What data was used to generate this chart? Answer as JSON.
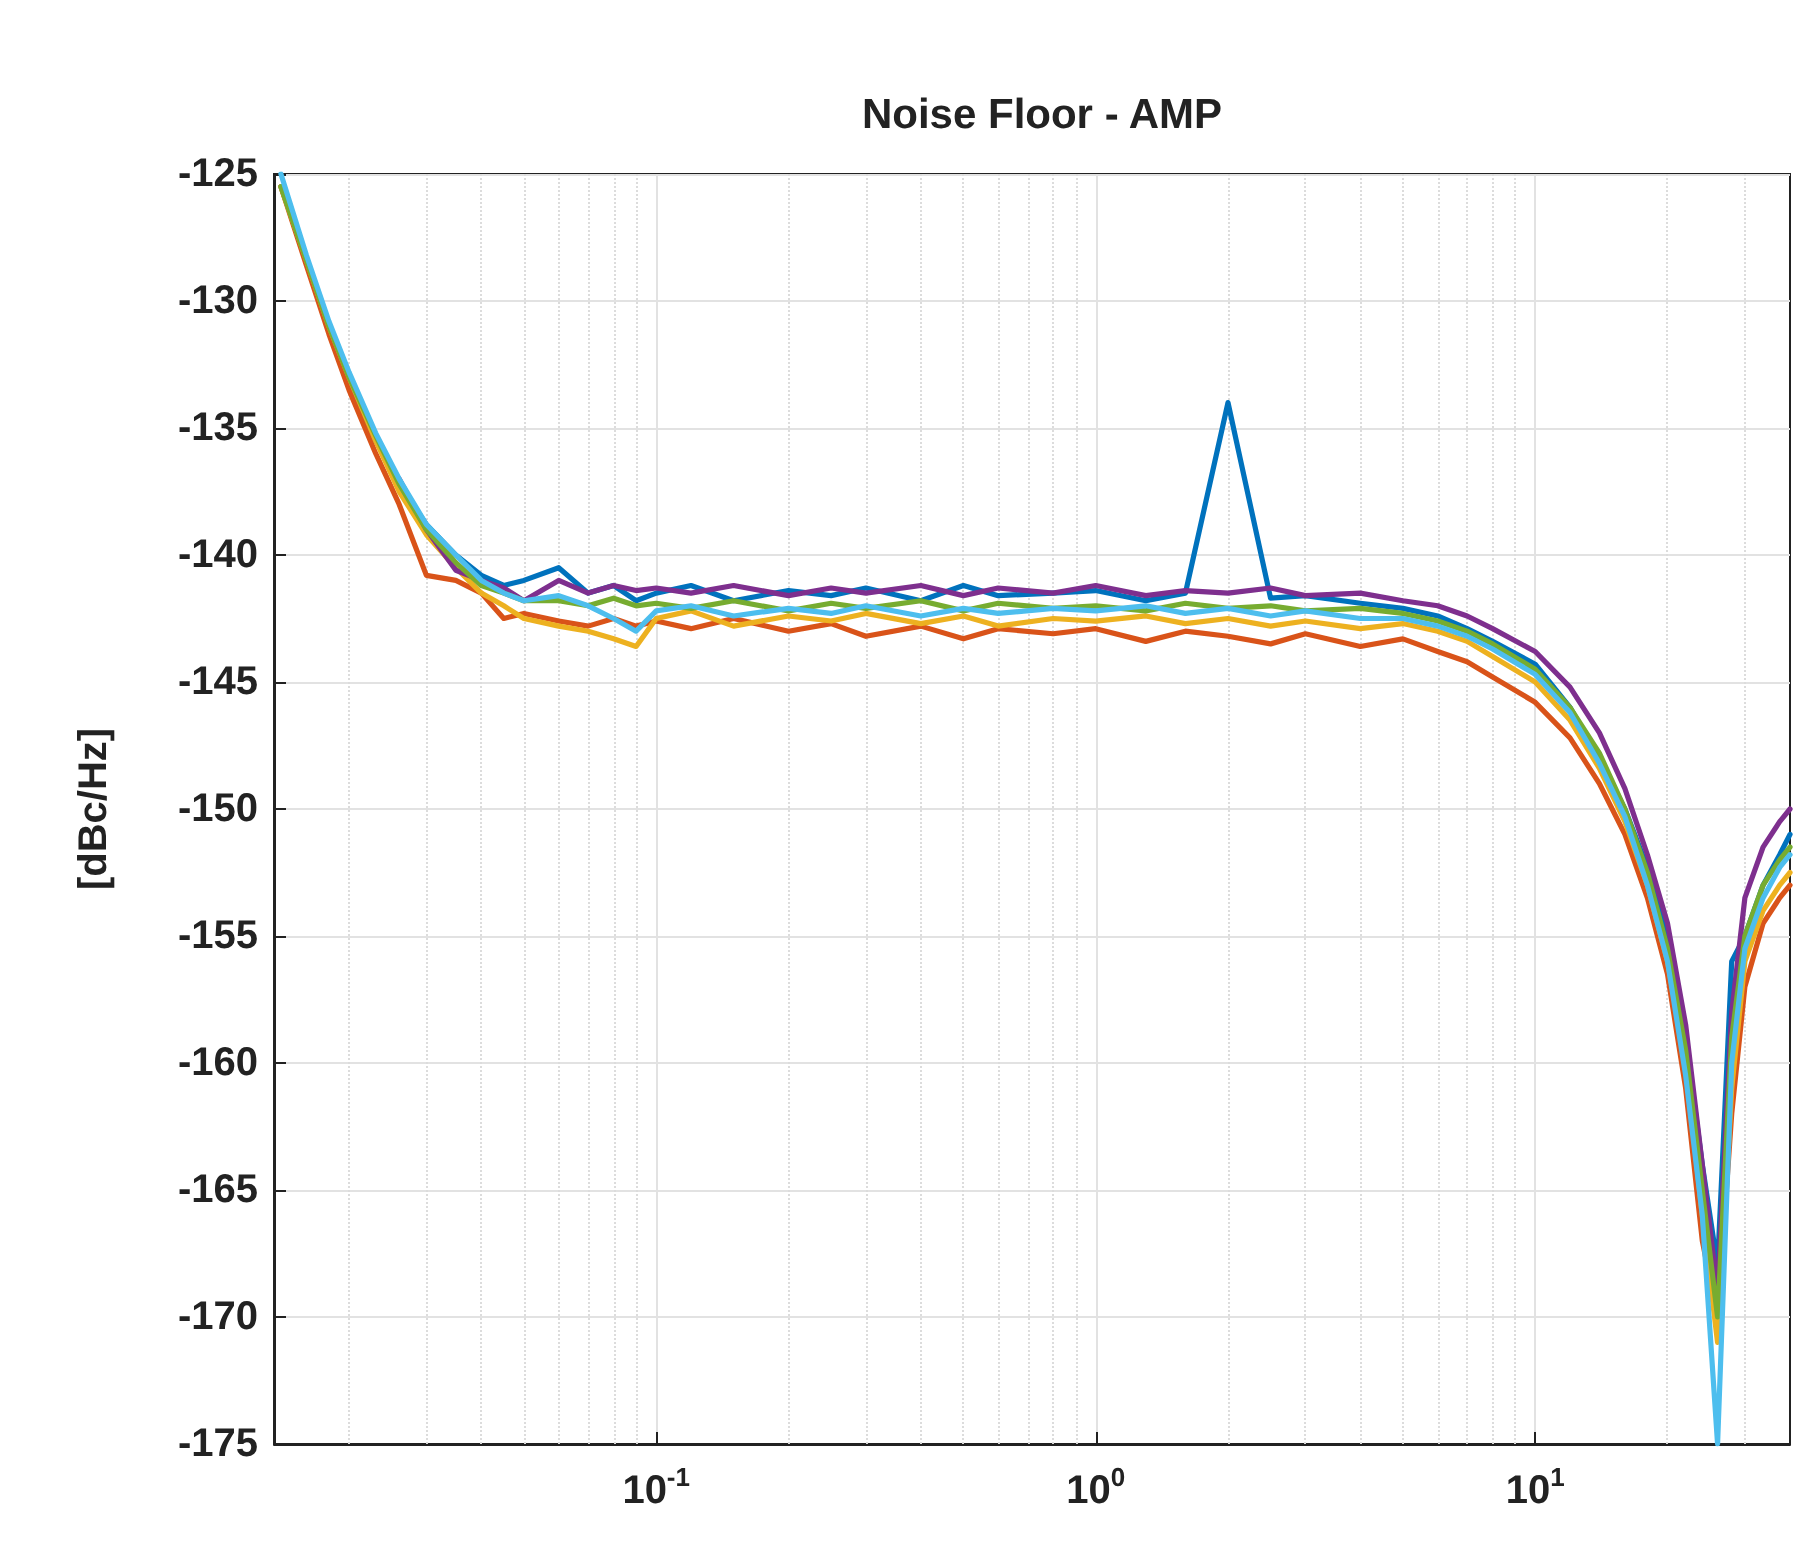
{
  "chart_data": {
    "type": "line",
    "title": "Noise Floor - AMP",
    "ylabel": "[dBc/Hz]",
    "log": "x",
    "grid": true,
    "xlim": [
      0.0135,
      38
    ],
    "xticks": [
      {
        "value": 0.1,
        "label": "10$^{-1}$"
      },
      {
        "value": 1,
        "label": "10$^{0}$"
      },
      {
        "value": 10,
        "label": "10$^{1}$"
      }
    ],
    "ylim": [
      -175,
      -125
    ],
    "yticks": [
      -175,
      -170,
      -165,
      -160,
      -155,
      -150,
      -145,
      -140,
      -135,
      -130,
      -125
    ],
    "x": [
      0.014,
      0.016,
      0.018,
      0.02,
      0.023,
      0.026,
      0.03,
      0.035,
      0.04,
      0.045,
      0.05,
      0.06,
      0.07,
      0.08,
      0.09,
      0.1,
      0.12,
      0.15,
      0.2,
      0.25,
      0.3,
      0.4,
      0.5,
      0.6,
      0.8,
      1,
      1.3,
      1.6,
      2,
      2.5,
      3,
      4,
      5,
      6,
      7,
      8,
      10,
      12,
      14,
      16,
      18,
      20,
      22,
      24,
      26,
      28,
      30,
      33,
      36,
      38
    ],
    "series": [
      {
        "color": "#0072bd",
        "values": [
          -125.5,
          -128.3,
          -131,
          -133.2,
          -135.5,
          -137.2,
          -138.8,
          -140,
          -140.8,
          -141.2,
          -141,
          -140.5,
          -141.5,
          -141.2,
          -141.8,
          -141.5,
          -141.2,
          -141.8,
          -141.4,
          -141.6,
          -141.3,
          -141.8,
          -141.2,
          -141.6,
          -141.5,
          -141.4,
          -141.8,
          -141.5,
          -134,
          -141.7,
          -141.6,
          -141.9,
          -142.1,
          -142.4,
          -142.9,
          -143.4,
          -144.3,
          -146,
          -148,
          -150,
          -152.3,
          -155,
          -159,
          -164,
          -168,
          -156,
          -155,
          -153,
          -151.8,
          -151
        ]
      },
      {
        "color": "#d95319",
        "values": [
          -125.5,
          -128.6,
          -131.3,
          -133.5,
          -136,
          -138,
          -140.8,
          -141,
          -141.5,
          -142.5,
          -142.3,
          -142.6,
          -142.8,
          -142.5,
          -142.8,
          -142.6,
          -142.9,
          -142.5,
          -143,
          -142.7,
          -143.2,
          -142.8,
          -143.3,
          -142.9,
          -143.1,
          -142.9,
          -143.4,
          -143,
          -143.2,
          -143.5,
          -143.1,
          -143.6,
          -143.3,
          -143.8,
          -144.2,
          -144.8,
          -145.8,
          -147.2,
          -149,
          -151,
          -153.5,
          -156.5,
          -161,
          -167,
          -170,
          -162,
          -157,
          -154.5,
          -153.5,
          -153
        ]
      },
      {
        "color": "#edb120",
        "values": [
          -125.5,
          -128.4,
          -131,
          -133,
          -135.5,
          -137.5,
          -139.2,
          -140.5,
          -141.5,
          -142,
          -142.5,
          -142.8,
          -143,
          -143.3,
          -143.6,
          -142.5,
          -142.2,
          -142.8,
          -142.4,
          -142.6,
          -142.3,
          -142.7,
          -142.4,
          -142.8,
          -142.5,
          -142.6,
          -142.4,
          -142.7,
          -142.5,
          -142.8,
          -142.6,
          -142.9,
          -142.7,
          -143,
          -143.4,
          -144,
          -145,
          -146.5,
          -148.4,
          -150.5,
          -153,
          -156,
          -160,
          -166,
          -171,
          -161,
          -156,
          -154,
          -153,
          -152.5
        ]
      },
      {
        "color": "#7e2f8e",
        "values": [
          null,
          null,
          null,
          null,
          null,
          -137,
          -139,
          -140.6,
          -141,
          -141.3,
          -141.8,
          -141,
          -141.5,
          -141.2,
          -141.4,
          -141.3,
          -141.5,
          -141.2,
          -141.6,
          -141.3,
          -141.5,
          -141.2,
          -141.6,
          -141.3,
          -141.5,
          -141.2,
          -141.6,
          -141.4,
          -141.5,
          -141.3,
          -141.6,
          -141.5,
          -141.8,
          -142,
          -142.4,
          -142.9,
          -143.8,
          -145.2,
          -147,
          -149.2,
          -151.8,
          -154.5,
          -158.5,
          -164,
          -169,
          -158,
          -153.5,
          -151.5,
          -150.5,
          -150
        ]
      },
      {
        "color": "#77ac30",
        "values": [
          -125.5,
          -128.4,
          -131,
          -133,
          -135.3,
          -137.2,
          -139,
          -140.3,
          -141.2,
          -141.5,
          -141.8,
          -141.8,
          -142,
          -141.7,
          -142,
          -141.9,
          -142.1,
          -141.8,
          -142.2,
          -141.9,
          -142.1,
          -141.8,
          -142.2,
          -141.9,
          -142.1,
          -142,
          -142.2,
          -141.9,
          -142.1,
          -142,
          -142.2,
          -142.1,
          -142.3,
          -142.6,
          -143,
          -143.5,
          -144.5,
          -146,
          -147.8,
          -150,
          -152.5,
          -155.5,
          -159.5,
          -165,
          -170,
          -159,
          -155,
          -153,
          -152,
          -151.5
        ]
      },
      {
        "color": "#4dbeee",
        "values": [
          -125,
          -128.2,
          -130.8,
          -132.8,
          -135.2,
          -137,
          -138.8,
          -140,
          -141,
          -141.5,
          -141.8,
          -141.6,
          -142,
          -142.5,
          -143,
          -142.2,
          -142,
          -142.4,
          -142.1,
          -142.3,
          -142,
          -142.4,
          -142.1,
          -142.3,
          -142.1,
          -142.2,
          -142,
          -142.3,
          -142.1,
          -142.4,
          -142.2,
          -142.5,
          -142.5,
          -142.8,
          -143.2,
          -143.7,
          -144.7,
          -146.2,
          -148.2,
          -150.3,
          -153,
          -156,
          -160.5,
          -166,
          -175,
          -160,
          -155.5,
          -153.5,
          -152.3,
          -151.8
        ]
      }
    ]
  }
}
